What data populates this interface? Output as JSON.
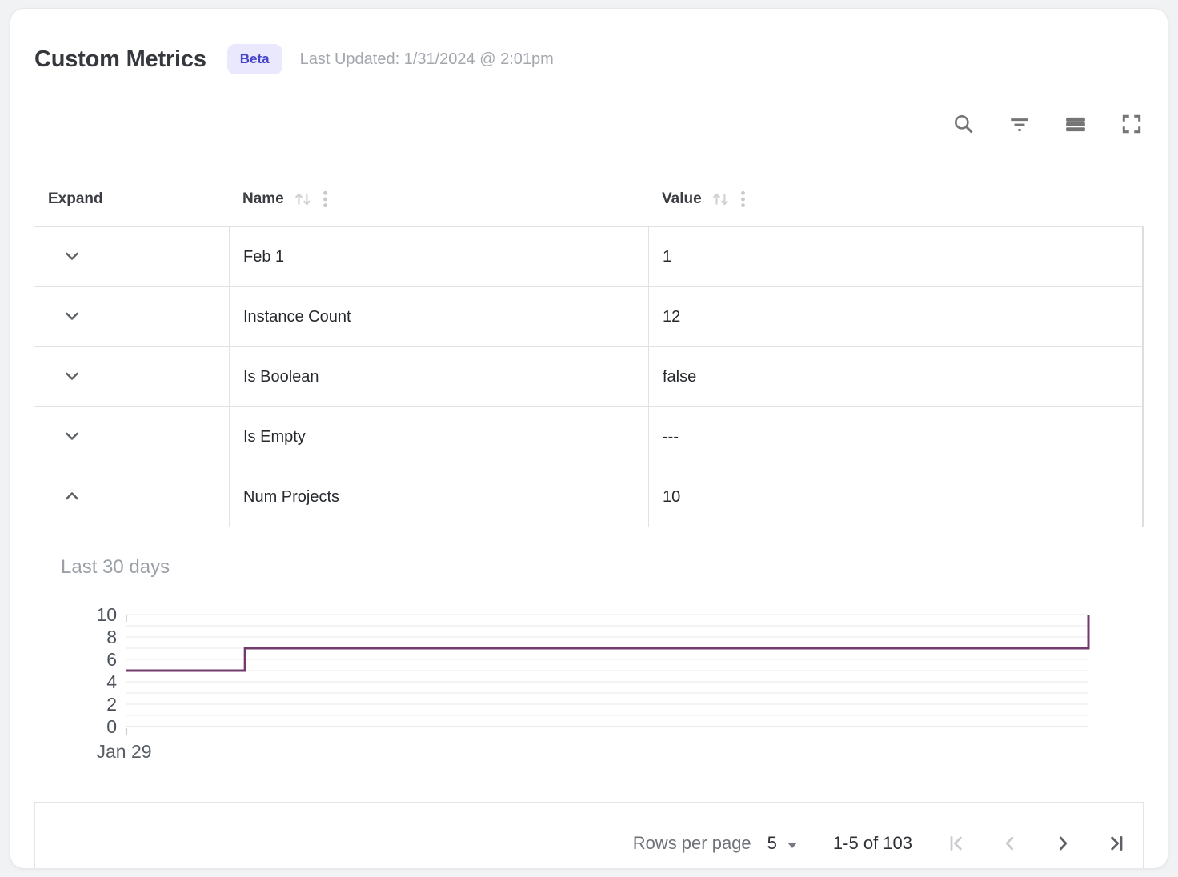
{
  "header": {
    "title": "Custom Metrics",
    "badge": "Beta",
    "last_updated": "Last Updated: 1/31/2024 @ 2:01pm"
  },
  "toolbar": {
    "icons": [
      "search-icon",
      "filter-icon",
      "density-icon",
      "fullscreen-icon"
    ]
  },
  "table": {
    "columns": [
      {
        "label": "Expand",
        "sortable": false
      },
      {
        "label": "Name",
        "sortable": true
      },
      {
        "label": "Value",
        "sortable": true
      }
    ],
    "rows": [
      {
        "name": "Feb 1",
        "value": "1",
        "expanded": false
      },
      {
        "name": "Instance Count",
        "value": "12",
        "expanded": false
      },
      {
        "name": "Is Boolean",
        "value": "false",
        "expanded": false
      },
      {
        "name": "Is Empty",
        "value": "---",
        "expanded": false
      },
      {
        "name": "Num Projects",
        "value": "10",
        "expanded": true
      }
    ]
  },
  "chart_data": {
    "type": "line",
    "subtype": "step",
    "title": "Last 30 days",
    "series": [
      {
        "name": "Num Projects",
        "points": [
          [
            0,
            5
          ],
          [
            0.124,
            5
          ],
          [
            0.124,
            7
          ],
          [
            1,
            7
          ],
          [
            1,
            10
          ]
        ],
        "note": "x is fraction of 30-day span starting Jan 29; value 5 until step to 7, jumps to 10 at end"
      }
    ],
    "x_tick_labels": [
      "Jan 29"
    ],
    "y_ticks": [
      0,
      2,
      4,
      6,
      8,
      10
    ],
    "ylim": [
      0,
      10
    ],
    "gridlines": "horizontal every 1 unit",
    "legend": "none",
    "line_color": "#733a6e"
  },
  "pagination": {
    "rows_per_page_label": "Rows per page",
    "rows_per_page_value": "5",
    "range_text": "1-5 of 103",
    "first_page_enabled": false,
    "previous_page_enabled": false,
    "next_page_enabled": true,
    "last_page_enabled": true
  },
  "colors": {
    "badge_bg": "#e9e8fc",
    "badge_text": "#4644c9",
    "chart_line": "#733a6e",
    "border": "#e1e2e5",
    "icon": "#757575",
    "text_primary": "#26292e",
    "text_secondary": "#9ba0a7"
  }
}
